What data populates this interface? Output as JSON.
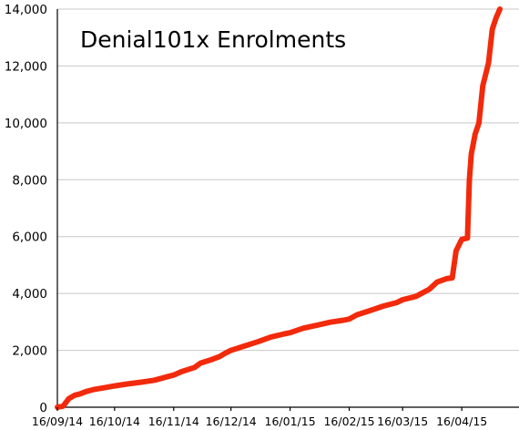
{
  "chart_data": {
    "type": "line",
    "title": "Denial101x Enrolments",
    "xlabel": "",
    "ylabel": "",
    "ylim": [
      0,
      14000
    ],
    "y_ticks": [
      "0",
      "2,000",
      "4,000",
      "6,000",
      "8,000",
      "10,000",
      "12,000",
      "14,000"
    ],
    "y_tick_values": [
      0,
      2000,
      4000,
      6000,
      8000,
      10000,
      12000,
      14000
    ],
    "x_ticks": [
      "16/09/14",
      "16/10/14",
      "16/11/14",
      "16/12/14",
      "16/01/15",
      "16/02/15",
      "16/03/15",
      "16/04/15"
    ],
    "xlim": [
      "2014-09-16",
      "2015-05-16"
    ],
    "grid": true,
    "line_color": "#f22a0c",
    "x": [
      "2014-09-16",
      "2014-09-19",
      "2014-09-22",
      "2014-09-25",
      "2014-09-28",
      "2014-10-01",
      "2014-10-05",
      "2014-10-10",
      "2014-10-16",
      "2014-10-23",
      "2014-10-30",
      "2014-11-06",
      "2014-11-13",
      "2014-11-16",
      "2014-11-20",
      "2014-11-27",
      "2014-11-30",
      "2014-12-06",
      "2014-12-10",
      "2014-12-13",
      "2014-12-16",
      "2014-12-23",
      "2014-12-30",
      "2015-01-06",
      "2015-01-13",
      "2015-01-16",
      "2015-01-23",
      "2015-01-30",
      "2015-02-06",
      "2015-02-13",
      "2015-02-16",
      "2015-02-20",
      "2015-02-27",
      "2015-03-06",
      "2015-03-13",
      "2015-03-16",
      "2015-03-23",
      "2015-03-30",
      "2015-04-03",
      "2015-04-08",
      "2015-04-11",
      "2015-04-13",
      "2015-04-16",
      "2015-04-19",
      "2015-04-20",
      "2015-04-21",
      "2015-04-23",
      "2015-04-25",
      "2015-04-27",
      "2015-04-30",
      "2015-05-02",
      "2015-05-04",
      "2015-05-06"
    ],
    "series": [
      {
        "values": [
          0,
          40,
          300,
          420,
          470,
          550,
          620,
          680,
          750,
          820,
          880,
          950,
          1080,
          1130,
          1250,
          1400,
          1550,
          1680,
          1780,
          1900,
          2000,
          2150,
          2300,
          2470,
          2580,
          2620,
          2780,
          2880,
          2990,
          3060,
          3100,
          3250,
          3400,
          3560,
          3680,
          3780,
          3900,
          4150,
          4400,
          4520,
          4550,
          5500,
          5900,
          5950,
          8000,
          8900,
          9600,
          10000,
          11300,
          12100,
          13300,
          13700,
          14000
        ]
      }
    ]
  }
}
